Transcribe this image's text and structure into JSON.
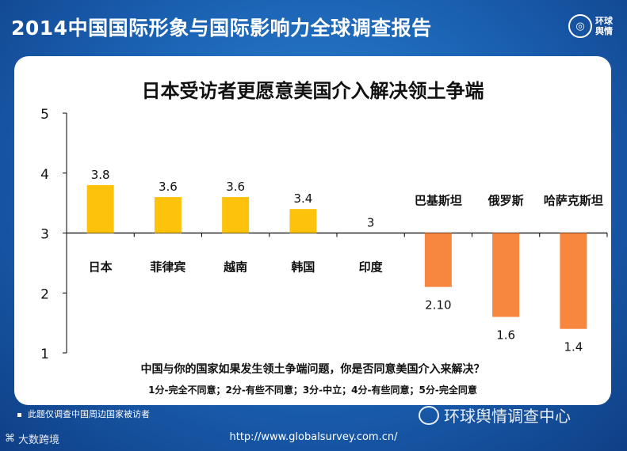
{
  "header": {
    "title": "2014中国国际形象与国际影响力全球调查报告"
  },
  "logo": {
    "text": "环球舆情"
  },
  "chart_data": {
    "type": "bar",
    "title": "日本受访者更愿意美国介入解决领土争端",
    "baseline": 3,
    "ylim": [
      1,
      5
    ],
    "yticks": [
      "1",
      "2",
      "3",
      "4",
      "5"
    ],
    "categories": [
      "日本",
      "菲律宾",
      "越南",
      "韩国",
      "印度",
      "巴基斯坦",
      "俄罗斯",
      "哈萨克斯坦"
    ],
    "values": [
      3.8,
      3.6,
      3.6,
      3.4,
      3,
      2.1,
      1.6,
      1.4
    ],
    "value_labels": [
      "3.8",
      "3.6",
      "3.6",
      "3.4",
      "3",
      "2.10",
      "1.6",
      "1.4"
    ],
    "colors": {
      "above": "#fdc20b",
      "below": "#f7863f"
    },
    "xlabel": "中国与你的国家如果发生领土争端问题，你是否同意美国介入来解决？",
    "scale_legend": "1分-完全不同意；2分-有些不同意；3分-中立；4分-有些同意；5分-完全同意"
  },
  "footnote": "此题仅调查中国周边国家被访者",
  "watermark": "环球舆情调查中心",
  "bottom_left": "大数跨境",
  "url": "http://www.globalsurvey.com.cn/"
}
